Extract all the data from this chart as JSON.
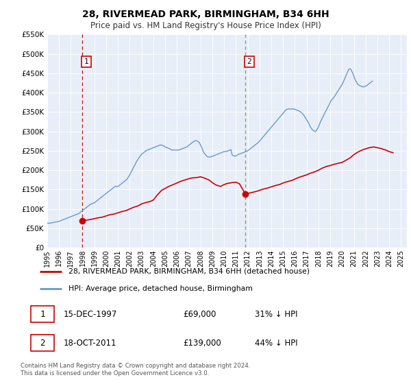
{
  "title": "28, RIVERMEAD PARK, BIRMINGHAM, B34 6HH",
  "subtitle": "Price paid vs. HM Land Registry's House Price Index (HPI)",
  "ylim": [
    0,
    550000
  ],
  "xlim_start": 1995.0,
  "xlim_end": 2025.5,
  "yticks": [
    0,
    50000,
    100000,
    150000,
    200000,
    250000,
    300000,
    350000,
    400000,
    450000,
    500000,
    550000
  ],
  "ytick_labels": [
    "£0",
    "£50K",
    "£100K",
    "£150K",
    "£200K",
    "£250K",
    "£300K",
    "£350K",
    "£400K",
    "£450K",
    "£500K",
    "£550K"
  ],
  "xticks": [
    1995,
    1996,
    1997,
    1998,
    1999,
    2000,
    2001,
    2002,
    2003,
    2004,
    2005,
    2006,
    2007,
    2008,
    2009,
    2010,
    2011,
    2012,
    2013,
    2014,
    2015,
    2016,
    2017,
    2018,
    2019,
    2020,
    2021,
    2022,
    2023,
    2024,
    2025
  ],
  "sale_color": "#cc0000",
  "hpi_color": "#6699cc",
  "plot_bg_color": "#e8eef8",
  "marker1_x": 1997.958,
  "marker1_y": 69000,
  "marker2_x": 2011.792,
  "marker2_y": 139000,
  "vline1_x": 1997.958,
  "vline2_x": 2011.792,
  "legend_label_sale": "28, RIVERMEAD PARK, BIRMINGHAM, B34 6HH (detached house)",
  "legend_label_hpi": "HPI: Average price, detached house, Birmingham",
  "note1_label": "1",
  "note1_date": "15-DEC-1997",
  "note1_price": "£69,000",
  "note1_hpi": "31% ↓ HPI",
  "note2_label": "2",
  "note2_date": "18-OCT-2011",
  "note2_price": "£139,000",
  "note2_hpi": "44% ↓ HPI",
  "copyright_text": "Contains HM Land Registry data © Crown copyright and database right 2024.\nThis data is licensed under the Open Government Licence v3.0.",
  "hpi_x": [
    1995.0,
    1995.08,
    1995.17,
    1995.25,
    1995.33,
    1995.42,
    1995.5,
    1995.58,
    1995.67,
    1995.75,
    1995.83,
    1995.92,
    1996.0,
    1996.08,
    1996.17,
    1996.25,
    1996.33,
    1996.42,
    1996.5,
    1996.58,
    1996.67,
    1996.75,
    1996.83,
    1996.92,
    1997.0,
    1997.08,
    1997.17,
    1997.25,
    1997.33,
    1997.42,
    1997.5,
    1997.58,
    1997.67,
    1997.75,
    1997.83,
    1997.92,
    1998.0,
    1998.08,
    1998.17,
    1998.25,
    1998.33,
    1998.42,
    1998.5,
    1998.58,
    1998.67,
    1998.75,
    1998.83,
    1998.92,
    1999.0,
    1999.08,
    1999.17,
    1999.25,
    1999.33,
    1999.42,
    1999.5,
    1999.58,
    1999.67,
    1999.75,
    1999.83,
    1999.92,
    2000.0,
    2000.08,
    2000.17,
    2000.25,
    2000.33,
    2000.42,
    2000.5,
    2000.58,
    2000.67,
    2000.75,
    2000.83,
    2000.92,
    2001.0,
    2001.08,
    2001.17,
    2001.25,
    2001.33,
    2001.42,
    2001.5,
    2001.58,
    2001.67,
    2001.75,
    2001.83,
    2001.92,
    2002.0,
    2002.08,
    2002.17,
    2002.25,
    2002.33,
    2002.42,
    2002.5,
    2002.58,
    2002.67,
    2002.75,
    2002.83,
    2002.92,
    2003.0,
    2003.08,
    2003.17,
    2003.25,
    2003.33,
    2003.42,
    2003.5,
    2003.58,
    2003.67,
    2003.75,
    2003.83,
    2003.92,
    2004.0,
    2004.08,
    2004.17,
    2004.25,
    2004.33,
    2004.42,
    2004.5,
    2004.58,
    2004.67,
    2004.75,
    2004.83,
    2004.92,
    2005.0,
    2005.08,
    2005.17,
    2005.25,
    2005.33,
    2005.42,
    2005.5,
    2005.58,
    2005.67,
    2005.75,
    2005.83,
    2005.92,
    2006.0,
    2006.08,
    2006.17,
    2006.25,
    2006.33,
    2006.42,
    2006.5,
    2006.58,
    2006.67,
    2006.75,
    2006.83,
    2006.92,
    2007.0,
    2007.08,
    2007.17,
    2007.25,
    2007.33,
    2007.42,
    2007.5,
    2007.58,
    2007.67,
    2007.75,
    2007.83,
    2007.92,
    2008.0,
    2008.08,
    2008.17,
    2008.25,
    2008.33,
    2008.42,
    2008.5,
    2008.58,
    2008.67,
    2008.75,
    2008.83,
    2008.92,
    2009.0,
    2009.08,
    2009.17,
    2009.25,
    2009.33,
    2009.42,
    2009.5,
    2009.58,
    2009.67,
    2009.75,
    2009.83,
    2009.92,
    2010.0,
    2010.08,
    2010.17,
    2010.25,
    2010.33,
    2010.42,
    2010.5,
    2010.58,
    2010.67,
    2010.75,
    2010.83,
    2010.92,
    2011.0,
    2011.08,
    2011.17,
    2011.25,
    2011.33,
    2011.42,
    2011.5,
    2011.58,
    2011.67,
    2011.75,
    2011.83,
    2011.92,
    2012.0,
    2012.08,
    2012.17,
    2012.25,
    2012.33,
    2012.42,
    2012.5,
    2012.58,
    2012.67,
    2012.75,
    2012.83,
    2012.92,
    2013.0,
    2013.08,
    2013.17,
    2013.25,
    2013.33,
    2013.42,
    2013.5,
    2013.58,
    2013.67,
    2013.75,
    2013.83,
    2013.92,
    2014.0,
    2014.08,
    2014.17,
    2014.25,
    2014.33,
    2014.42,
    2014.5,
    2014.58,
    2014.67,
    2014.75,
    2014.83,
    2014.92,
    2015.0,
    2015.08,
    2015.17,
    2015.25,
    2015.33,
    2015.42,
    2015.5,
    2015.58,
    2015.67,
    2015.75,
    2015.83,
    2015.92,
    2016.0,
    2016.08,
    2016.17,
    2016.25,
    2016.33,
    2016.42,
    2016.5,
    2016.58,
    2016.67,
    2016.75,
    2016.83,
    2016.92,
    2017.0,
    2017.08,
    2017.17,
    2017.25,
    2017.33,
    2017.42,
    2017.5,
    2017.58,
    2017.67,
    2017.75,
    2017.83,
    2017.92,
    2018.0,
    2018.08,
    2018.17,
    2018.25,
    2018.33,
    2018.42,
    2018.5,
    2018.58,
    2018.67,
    2018.75,
    2018.83,
    2018.92,
    2019.0,
    2019.08,
    2019.17,
    2019.25,
    2019.33,
    2019.42,
    2019.5,
    2019.58,
    2019.67,
    2019.75,
    2019.83,
    2019.92,
    2020.0,
    2020.08,
    2020.17,
    2020.25,
    2020.33,
    2020.42,
    2020.5,
    2020.58,
    2020.67,
    2020.75,
    2020.83,
    2020.92,
    2021.0,
    2021.08,
    2021.17,
    2021.25,
    2021.33,
    2021.42,
    2021.5,
    2021.58,
    2021.67,
    2021.75,
    2021.83,
    2021.92,
    2022.0,
    2022.08,
    2022.17,
    2022.25,
    2022.33,
    2022.42,
    2022.5,
    2022.58,
    2022.67,
    2022.75,
    2022.83,
    2022.92,
    2023.0,
    2023.08,
    2023.17,
    2023.25,
    2023.33,
    2023.42,
    2023.5,
    2023.58,
    2023.67,
    2023.75,
    2023.83,
    2023.92,
    2024.0,
    2024.08,
    2024.17,
    2024.25,
    2024.33
  ],
  "hpi_y": [
    63000,
    63500,
    63000,
    63500,
    64000,
    64500,
    65000,
    65500,
    66000,
    66500,
    67000,
    67500,
    68000,
    69000,
    70000,
    71000,
    72000,
    73000,
    74000,
    75000,
    76000,
    77000,
    78000,
    79000,
    80000,
    81000,
    82000,
    83000,
    84000,
    85000,
    86000,
    87000,
    88000,
    90000,
    92000,
    94000,
    96000,
    98000,
    100000,
    102000,
    104000,
    106000,
    108000,
    110000,
    112000,
    113000,
    114000,
    115000,
    116000,
    118000,
    120000,
    122000,
    124000,
    126000,
    128000,
    130000,
    132000,
    134000,
    136000,
    138000,
    140000,
    142000,
    144000,
    146000,
    148000,
    150000,
    152000,
    154000,
    156000,
    158000,
    158000,
    158000,
    158000,
    160000,
    162000,
    164000,
    166000,
    168000,
    170000,
    172000,
    174000,
    176000,
    180000,
    184000,
    188000,
    193000,
    198000,
    203000,
    208000,
    213000,
    218000,
    223000,
    227000,
    231000,
    235000,
    238000,
    241000,
    243000,
    245000,
    247000,
    249000,
    251000,
    252000,
    253000,
    254000,
    255000,
    256000,
    257000,
    258000,
    259000,
    260000,
    261000,
    262000,
    263000,
    264000,
    265000,
    265000,
    264000,
    263000,
    262000,
    260000,
    259000,
    258000,
    257000,
    256000,
    255000,
    253000,
    252000,
    252000,
    252000,
    252000,
    252000,
    252000,
    252000,
    252000,
    253000,
    254000,
    255000,
    256000,
    257000,
    258000,
    259000,
    260000,
    262000,
    264000,
    266000,
    268000,
    270000,
    272000,
    274000,
    275000,
    276000,
    276000,
    275000,
    273000,
    270000,
    265000,
    260000,
    253000,
    247000,
    243000,
    240000,
    237000,
    235000,
    234000,
    234000,
    234000,
    235000,
    236000,
    237000,
    238000,
    239000,
    240000,
    241000,
    242000,
    243000,
    244000,
    245000,
    246000,
    247000,
    248000,
    248000,
    248000,
    249000,
    250000,
    251000,
    252000,
    253000,
    240000,
    238000,
    237000,
    236000,
    237000,
    238000,
    240000,
    241000,
    242000,
    243000,
    244000,
    245000,
    246000,
    247000,
    248000,
    249000,
    250000,
    252000,
    254000,
    256000,
    258000,
    260000,
    262000,
    264000,
    266000,
    268000,
    270000,
    272000,
    275000,
    278000,
    281000,
    284000,
    287000,
    290000,
    293000,
    296000,
    299000,
    302000,
    305000,
    308000,
    311000,
    314000,
    317000,
    320000,
    323000,
    326000,
    329000,
    332000,
    335000,
    338000,
    341000,
    344000,
    347000,
    350000,
    353000,
    356000,
    357000,
    358000,
    358000,
    358000,
    358000,
    358000,
    358000,
    358000,
    357000,
    356000,
    355000,
    354000,
    353000,
    352000,
    350000,
    348000,
    345000,
    342000,
    338000,
    334000,
    330000,
    326000,
    321000,
    316000,
    311000,
    307000,
    304000,
    302000,
    300000,
    300000,
    303000,
    307000,
    312000,
    318000,
    325000,
    330000,
    335000,
    340000,
    345000,
    350000,
    355000,
    360000,
    365000,
    370000,
    375000,
    380000,
    383000,
    386000,
    389000,
    393000,
    397000,
    401000,
    405000,
    409000,
    413000,
    417000,
    421000,
    426000,
    432000,
    438000,
    444000,
    450000,
    456000,
    460000,
    462000,
    460000,
    455000,
    450000,
    443000,
    436000,
    430000,
    426000,
    422000,
    420000,
    418000,
    417000,
    416000,
    415000,
    415000,
    416000,
    417000,
    418000,
    420000,
    422000,
    424000,
    426000,
    428000,
    430000
  ],
  "sale_x": [
    1997.958,
    1998.3,
    1998.7,
    1999.0,
    1999.3,
    1999.7,
    2000.0,
    2000.3,
    2000.7,
    2001.0,
    2001.3,
    2001.7,
    2002.0,
    2002.3,
    2002.7,
    2003.0,
    2003.3,
    2003.7,
    2004.0,
    2004.3,
    2004.7,
    2005.0,
    2005.3,
    2005.7,
    2006.0,
    2006.3,
    2006.7,
    2007.0,
    2007.3,
    2007.7,
    2008.0,
    2008.3,
    2008.7,
    2009.0,
    2009.3,
    2009.7,
    2010.0,
    2010.3,
    2010.7,
    2011.0,
    2011.3,
    2011.792,
    2012.0,
    2012.3,
    2012.7,
    2013.0,
    2013.3,
    2013.7,
    2014.0,
    2014.3,
    2014.7,
    2015.0,
    2015.3,
    2015.7,
    2016.0,
    2016.3,
    2016.7,
    2017.0,
    2017.3,
    2017.7,
    2018.0,
    2018.3,
    2018.7,
    2019.0,
    2019.3,
    2019.7,
    2020.0,
    2020.3,
    2020.7,
    2021.0,
    2021.3,
    2021.7,
    2022.0,
    2022.3,
    2022.7,
    2023.0,
    2023.3,
    2023.7,
    2024.0,
    2024.33
  ],
  "sale_y": [
    69000,
    71000,
    73000,
    75000,
    77000,
    79000,
    82000,
    85000,
    87000,
    90000,
    93000,
    96000,
    100000,
    104000,
    108000,
    113000,
    116000,
    119000,
    123000,
    135000,
    148000,
    153000,
    158000,
    163000,
    167000,
    171000,
    175000,
    178000,
    180000,
    181000,
    183000,
    180000,
    175000,
    168000,
    162000,
    158000,
    163000,
    166000,
    168000,
    169000,
    165000,
    139000,
    140000,
    142000,
    145000,
    148000,
    151000,
    154000,
    157000,
    160000,
    163000,
    167000,
    170000,
    173000,
    177000,
    181000,
    185000,
    188000,
    192000,
    196000,
    200000,
    205000,
    210000,
    212000,
    215000,
    218000,
    220000,
    225000,
    232000,
    240000,
    246000,
    252000,
    255000,
    258000,
    260000,
    258000,
    256000,
    252000,
    248000,
    245000
  ]
}
